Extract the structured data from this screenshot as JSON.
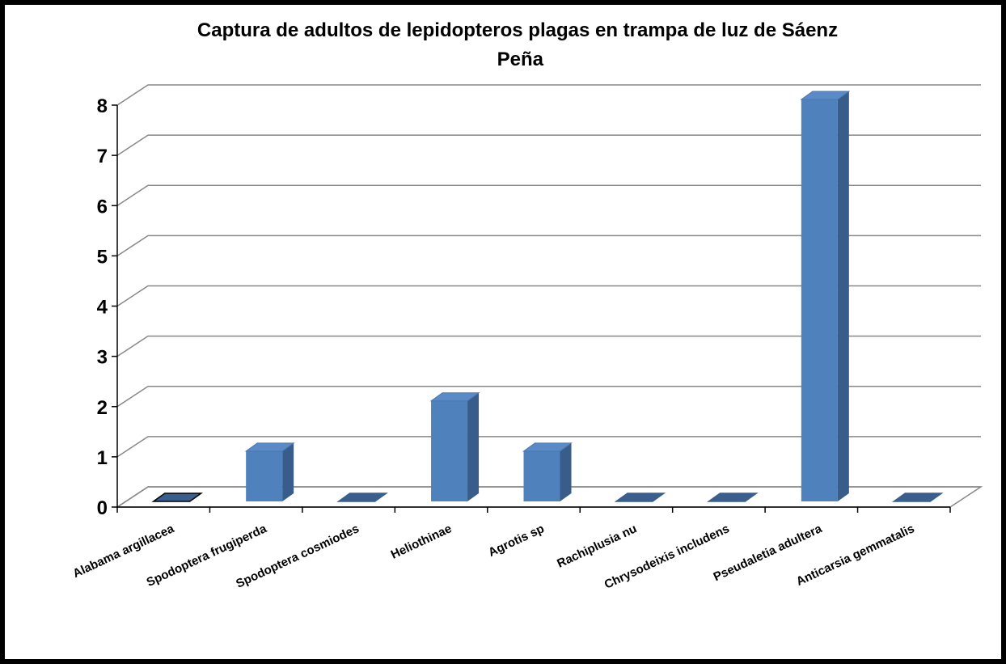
{
  "chart_data": {
    "type": "bar3d",
    "title": "Captura de adultos de lepidopteros plagas en trampa de luz de Sáenz Peña",
    "categories": [
      "Alabama argillacea",
      "Spodoptera frugiperda",
      "Spodoptera cosmiodes",
      "Heliothinae",
      "Agrotis sp",
      "Rachiplusia nu",
      "Chrysodeixis includens",
      "Pseudaletia adultera",
      "Anticarsia gemmatalis"
    ],
    "values": [
      0,
      1,
      0,
      2,
      1,
      0,
      0,
      8,
      0
    ],
    "color": "#4f81bd",
    "ylim": [
      0,
      8
    ],
    "yticks": [
      0,
      1,
      2,
      3,
      4,
      5,
      6,
      7,
      8
    ],
    "grid": true
  }
}
